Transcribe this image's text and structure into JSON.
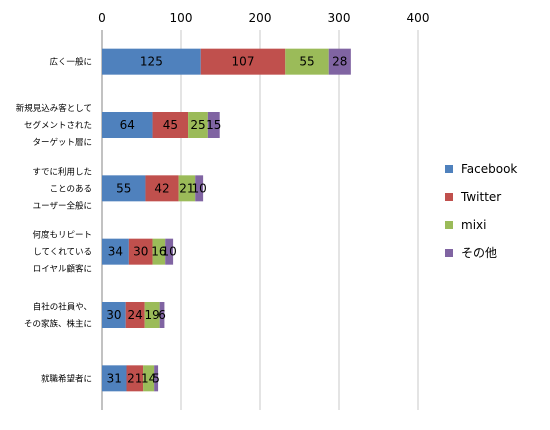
{
  "chart_data": {
    "type": "bar",
    "orientation": "horizontal",
    "stacked": true,
    "title": "",
    "xlabel": "",
    "ylabel": "",
    "xlim": [
      0,
      400
    ],
    "x_ticks": [
      0,
      100,
      200,
      300,
      400
    ],
    "x_axis_position": "top",
    "grid": true,
    "legend_position": "right",
    "categories": [
      "広く一般に",
      "新規見込み客として\nセグメントされた\nターゲット層に",
      "すでに利用した\nことのある\nユーザー全般に",
      "何度もリピート\nしてくれている\nロイヤル顧客に",
      "自社の社員や、\nその家族、株主に",
      "就職希望者に"
    ],
    "series": [
      {
        "name": "Facebook",
        "color": "#4F81BD",
        "values": [
          125,
          64,
          55,
          34,
          30,
          31
        ]
      },
      {
        "name": "Twitter",
        "color": "#C0504D",
        "values": [
          107,
          45,
          42,
          30,
          24,
          21
        ]
      },
      {
        "name": "mixi",
        "color": "#9BBB59",
        "values": [
          55,
          25,
          21,
          16,
          19,
          14
        ]
      },
      {
        "name": "その他",
        "color": "#8064A2",
        "values": [
          28,
          15,
          10,
          10,
          6,
          5
        ]
      }
    ]
  }
}
